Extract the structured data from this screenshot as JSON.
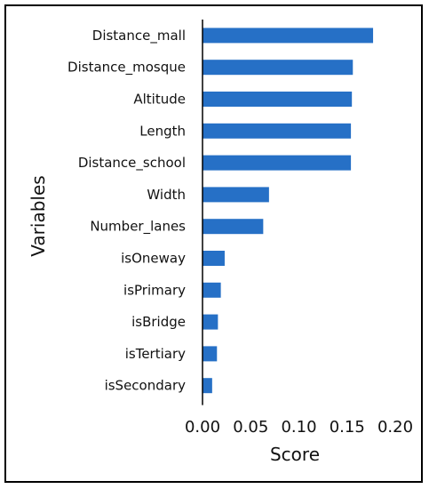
{
  "chart_data": {
    "type": "bar",
    "orientation": "horizontal",
    "categories": [
      "Distance_mall",
      "Distance_mosque",
      "Altitude",
      "Length",
      "Distance_school",
      "Width",
      "Number_lanes",
      "isOneway",
      "isPrimary",
      "isBridge",
      "isTertiary",
      "isSecondary"
    ],
    "values": [
      0.177,
      0.156,
      0.155,
      0.154,
      0.154,
      0.069,
      0.063,
      0.023,
      0.019,
      0.016,
      0.015,
      0.01
    ],
    "xlabel": "Score",
    "ylabel": "Variables",
    "xlim": [
      0,
      0.2
    ],
    "xticks": [
      "0.00",
      "0.05",
      "0.10",
      "0.15",
      "0.20"
    ],
    "grid": false,
    "bar_color": "#2670c6"
  }
}
